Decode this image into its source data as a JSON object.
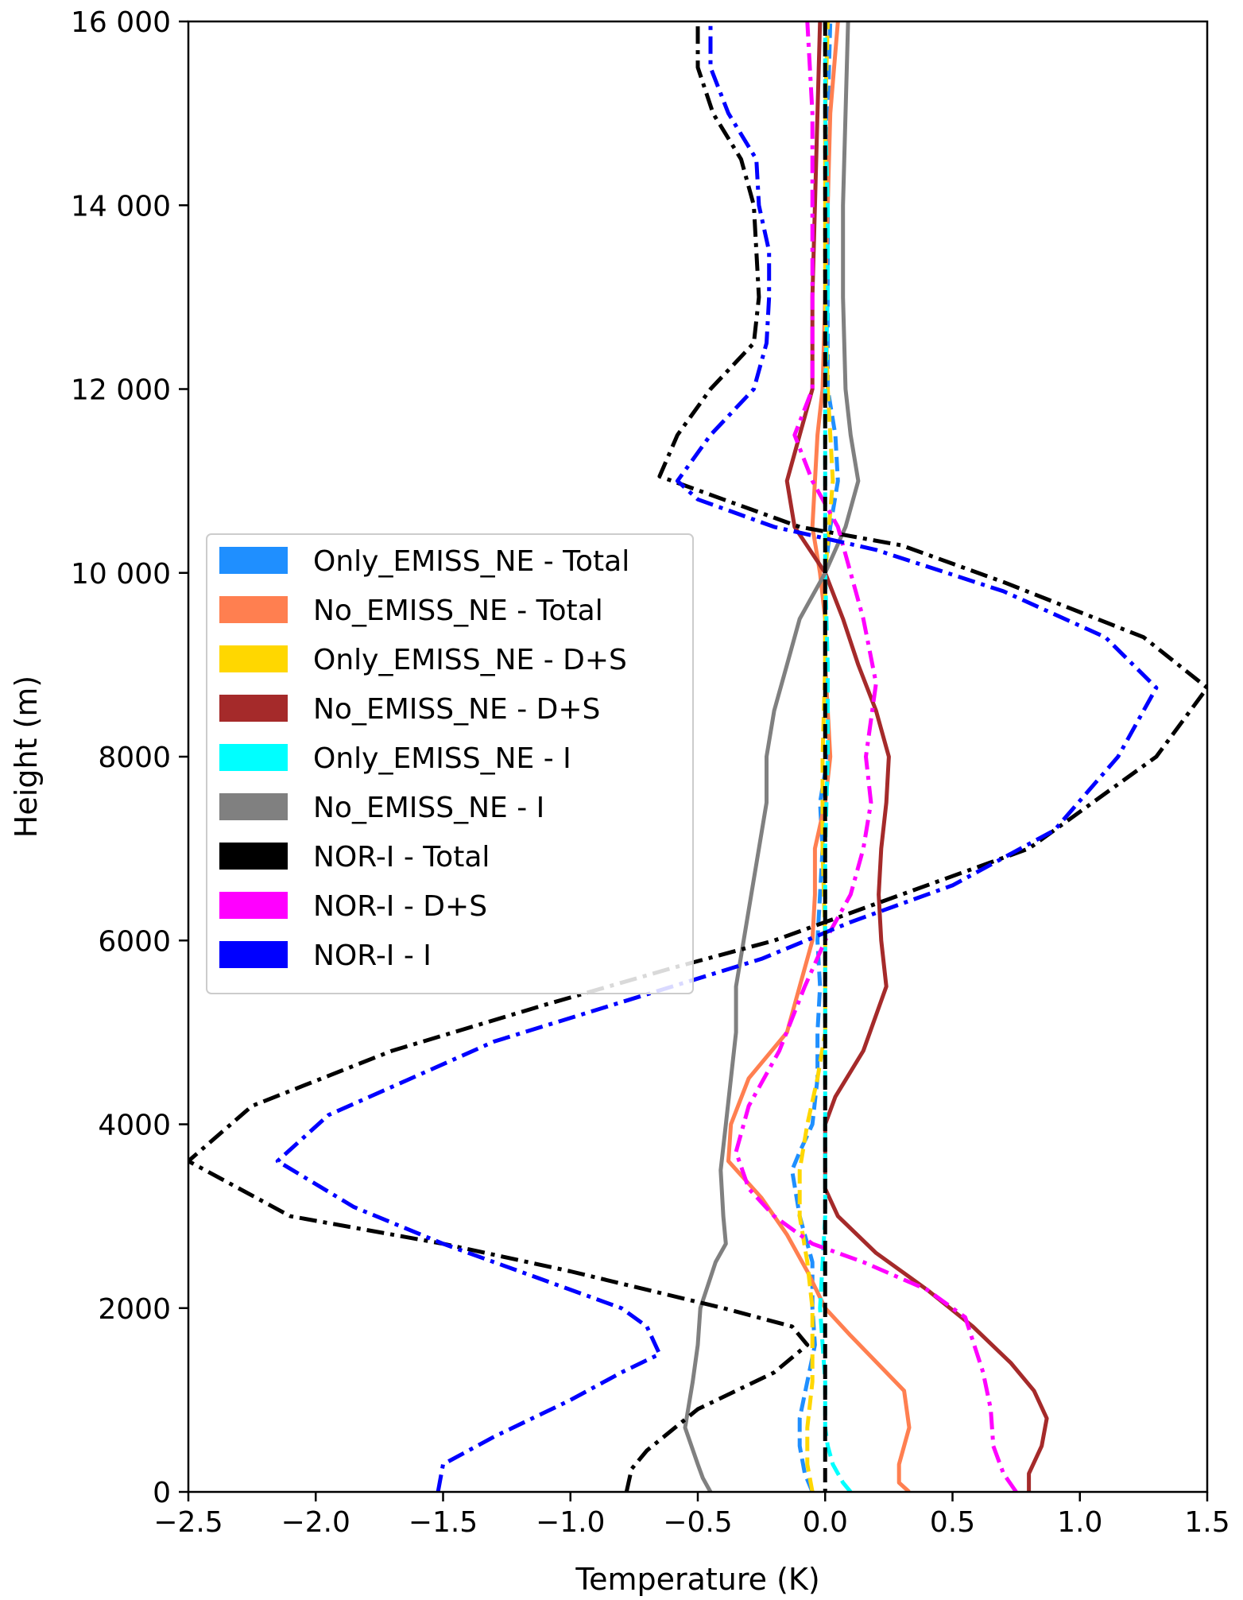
{
  "chart_data": {
    "type": "line",
    "title": "",
    "xlabel": "Temperature (K)",
    "ylabel": "Height (m)",
    "xlim": [
      -2.5,
      1.5
    ],
    "ylim": [
      0,
      16000
    ],
    "xticks": [
      -2.5,
      -2.0,
      -1.5,
      -1.0,
      -0.5,
      0.0,
      0.5,
      1.0,
      1.5
    ],
    "xtick_labels": [
      "−2.5",
      "−2.0",
      "−1.5",
      "−1.0",
      "−0.5",
      "0.0",
      "0.5",
      "1.0",
      "1.5"
    ],
    "yticks": [
      0,
      2000,
      4000,
      6000,
      8000,
      10000,
      12000,
      14000,
      16000
    ],
    "ytick_labels": [
      "0",
      "2000",
      "4000",
      "6000",
      "8000",
      "10 000",
      "12 000",
      "14 000",
      "16 000"
    ],
    "grid": false,
    "legend_position": "center-left",
    "series": [
      {
        "name": "Only_EMISS_NE - Total",
        "color": "#1f8fff",
        "style": "dashed",
        "points": [
          [
            -0.05,
            0
          ],
          [
            -0.08,
            200
          ],
          [
            -0.1,
            500
          ],
          [
            -0.1,
            800
          ],
          [
            -0.07,
            1200
          ],
          [
            -0.04,
            1600
          ],
          [
            -0.05,
            2000
          ],
          [
            -0.05,
            2500
          ],
          [
            -0.1,
            3000
          ],
          [
            -0.13,
            3500
          ],
          [
            -0.1,
            3700
          ],
          [
            -0.05,
            4000
          ],
          [
            -0.03,
            4500
          ],
          [
            -0.03,
            5000
          ],
          [
            -0.02,
            5500
          ],
          [
            -0.03,
            6000
          ],
          [
            -0.02,
            6500
          ],
          [
            -0.01,
            7000
          ],
          [
            -0.02,
            7500
          ],
          [
            0.01,
            8000
          ],
          [
            0.01,
            8500
          ],
          [
            0.0,
            9000
          ],
          [
            0.0,
            9500
          ],
          [
            0.0,
            10000
          ],
          [
            0.02,
            10500
          ],
          [
            0.05,
            11000
          ],
          [
            0.04,
            11500
          ],
          [
            0.01,
            12000
          ],
          [
            0.01,
            13000
          ],
          [
            0.01,
            14000
          ],
          [
            0.01,
            15000
          ],
          [
            0.02,
            16000
          ]
        ]
      },
      {
        "name": "No_EMISS_NE - Total",
        "color": "#ff7f50",
        "style": "solid",
        "points": [
          [
            0.33,
            0
          ],
          [
            0.29,
            100
          ],
          [
            0.29,
            300
          ],
          [
            0.33,
            700
          ],
          [
            0.31,
            1100
          ],
          [
            0.1,
            1700
          ],
          [
            0.0,
            2000
          ],
          [
            -0.07,
            2400
          ],
          [
            -0.15,
            2800
          ],
          [
            -0.25,
            3200
          ],
          [
            -0.38,
            3600
          ],
          [
            -0.37,
            4000
          ],
          [
            -0.3,
            4500
          ],
          [
            -0.15,
            5000
          ],
          [
            -0.1,
            5500
          ],
          [
            -0.05,
            6000
          ],
          [
            -0.04,
            6500
          ],
          [
            -0.04,
            7000
          ],
          [
            0.0,
            7500
          ],
          [
            0.02,
            8000
          ],
          [
            0.01,
            8500
          ],
          [
            0.0,
            9000
          ],
          [
            0.0,
            9500
          ],
          [
            -0.02,
            10000
          ],
          [
            -0.05,
            10500
          ],
          [
            -0.04,
            11000
          ],
          [
            -0.03,
            11500
          ],
          [
            -0.01,
            12000
          ],
          [
            0.0,
            13000
          ],
          [
            0.01,
            14000
          ],
          [
            0.02,
            15000
          ],
          [
            0.05,
            16000
          ]
        ]
      },
      {
        "name": "Only_EMISS_NE - D+S",
        "color": "#ffd700",
        "style": "dashed",
        "points": [
          [
            -0.05,
            0
          ],
          [
            -0.07,
            300
          ],
          [
            -0.07,
            700
          ],
          [
            -0.05,
            1200
          ],
          [
            -0.05,
            2000
          ],
          [
            -0.07,
            2500
          ],
          [
            -0.1,
            3000
          ],
          [
            -0.1,
            3500
          ],
          [
            -0.07,
            4000
          ],
          [
            -0.03,
            4500
          ],
          [
            0.0,
            5000
          ],
          [
            0.0,
            6000
          ],
          [
            -0.01,
            7000
          ],
          [
            -0.01,
            8000
          ],
          [
            0.0,
            9000
          ],
          [
            0.0,
            10000
          ],
          [
            0.03,
            11000
          ],
          [
            0.02,
            11500
          ],
          [
            0.01,
            12000
          ],
          [
            0.0,
            13000
          ],
          [
            0.0,
            14000
          ],
          [
            0.0,
            15000
          ],
          [
            0.01,
            16000
          ]
        ]
      },
      {
        "name": "No_EMISS_NE - D+S",
        "color": "#a52a2a",
        "style": "solid",
        "points": [
          [
            0.8,
            0
          ],
          [
            0.8,
            200
          ],
          [
            0.85,
            500
          ],
          [
            0.87,
            800
          ],
          [
            0.82,
            1100
          ],
          [
            0.73,
            1400
          ],
          [
            0.58,
            1800
          ],
          [
            0.4,
            2200
          ],
          [
            0.2,
            2600
          ],
          [
            0.05,
            3000
          ],
          [
            0.0,
            3300
          ],
          [
            0.0,
            3600
          ],
          [
            0.0,
            4000
          ],
          [
            0.04,
            4300
          ],
          [
            0.15,
            4800
          ],
          [
            0.24,
            5500
          ],
          [
            0.22,
            6000
          ],
          [
            0.21,
            6500
          ],
          [
            0.22,
            7000
          ],
          [
            0.24,
            7500
          ],
          [
            0.25,
            8000
          ],
          [
            0.2,
            8500
          ],
          [
            0.13,
            9000
          ],
          [
            0.07,
            9500
          ],
          [
            0.0,
            10000
          ],
          [
            -0.12,
            10500
          ],
          [
            -0.15,
            11000
          ],
          [
            -0.1,
            11500
          ],
          [
            -0.05,
            12000
          ],
          [
            -0.05,
            13000
          ],
          [
            -0.04,
            14000
          ],
          [
            -0.03,
            15000
          ],
          [
            -0.02,
            16000
          ]
        ]
      },
      {
        "name": "Only_EMISS_NE - I",
        "color": "#00ffff",
        "style": "dashed",
        "points": [
          [
            0.1,
            0
          ],
          [
            0.07,
            100
          ],
          [
            0.03,
            300
          ],
          [
            0.01,
            500
          ],
          [
            0.0,
            700
          ],
          [
            0.0,
            1200
          ],
          [
            -0.02,
            2000
          ],
          [
            0.0,
            3000
          ],
          [
            0.0,
            4000
          ],
          [
            0.0,
            5000
          ],
          [
            0.0,
            6000
          ],
          [
            0.0,
            7000
          ],
          [
            0.01,
            8000
          ],
          [
            0.01,
            9000
          ],
          [
            0.0,
            10000
          ],
          [
            0.0,
            11000
          ],
          [
            0.0,
            12000
          ],
          [
            0.01,
            13000
          ],
          [
            0.01,
            14000
          ],
          [
            0.0,
            15000
          ],
          [
            0.0,
            16000
          ]
        ]
      },
      {
        "name": "No_EMISS_NE - I",
        "color": "#808080",
        "style": "solid",
        "points": [
          [
            -0.45,
            0
          ],
          [
            -0.48,
            150
          ],
          [
            -0.5,
            300
          ],
          [
            -0.55,
            700
          ],
          [
            -0.52,
            1200
          ],
          [
            -0.5,
            1600
          ],
          [
            -0.49,
            2000
          ],
          [
            -0.43,
            2500
          ],
          [
            -0.39,
            2700
          ],
          [
            -0.4,
            3000
          ],
          [
            -0.41,
            3500
          ],
          [
            -0.39,
            4000
          ],
          [
            -0.37,
            4500
          ],
          [
            -0.35,
            5000
          ],
          [
            -0.35,
            5500
          ],
          [
            -0.32,
            6000
          ],
          [
            -0.29,
            6500
          ],
          [
            -0.26,
            7000
          ],
          [
            -0.23,
            7500
          ],
          [
            -0.23,
            8000
          ],
          [
            -0.2,
            8500
          ],
          [
            -0.15,
            9000
          ],
          [
            -0.1,
            9500
          ],
          [
            0.0,
            10000
          ],
          [
            0.08,
            10500
          ],
          [
            0.13,
            11000
          ],
          [
            0.1,
            11500
          ],
          [
            0.08,
            12000
          ],
          [
            0.07,
            13000
          ],
          [
            0.07,
            14000
          ],
          [
            0.08,
            15000
          ],
          [
            0.09,
            16000
          ]
        ]
      },
      {
        "name": "NOR-I - Total",
        "color": "#000000",
        "style": "dashdot",
        "points": [
          [
            -0.78,
            0
          ],
          [
            -0.76,
            250
          ],
          [
            -0.7,
            450
          ],
          [
            -0.5,
            900
          ],
          [
            -0.2,
            1300
          ],
          [
            -0.07,
            1600
          ],
          [
            -0.13,
            1800
          ],
          [
            -0.4,
            2000
          ],
          [
            -1.0,
            2400
          ],
          [
            -1.5,
            2700
          ],
          [
            -2.1,
            3000
          ],
          [
            -2.5,
            3600
          ],
          [
            -2.25,
            4200
          ],
          [
            -1.7,
            4800
          ],
          [
            -1.1,
            5300
          ],
          [
            -0.6,
            5700
          ],
          [
            -0.2,
            6000
          ],
          [
            0.2,
            6400
          ],
          [
            0.8,
            7000
          ],
          [
            1.3,
            8000
          ],
          [
            1.5,
            8750
          ],
          [
            1.25,
            9300
          ],
          [
            0.7,
            9900
          ],
          [
            0.3,
            10300
          ],
          [
            -0.1,
            10500
          ],
          [
            -0.4,
            10800
          ],
          [
            -0.65,
            11050
          ],
          [
            -0.58,
            11500
          ],
          [
            -0.45,
            12000
          ],
          [
            -0.28,
            12500
          ],
          [
            -0.26,
            13000
          ],
          [
            -0.27,
            13500
          ],
          [
            -0.28,
            14000
          ],
          [
            -0.33,
            14500
          ],
          [
            -0.44,
            15000
          ],
          [
            -0.5,
            15500
          ],
          [
            -0.5,
            16000
          ]
        ]
      },
      {
        "name": "NOR-I - D+S",
        "color": "#ff00ff",
        "style": "dashdot",
        "points": [
          [
            0.75,
            0
          ],
          [
            0.7,
            200
          ],
          [
            0.66,
            500
          ],
          [
            0.65,
            900
          ],
          [
            0.62,
            1300
          ],
          [
            0.55,
            1900
          ],
          [
            0.4,
            2200
          ],
          [
            0.15,
            2500
          ],
          [
            -0.05,
            2700
          ],
          [
            -0.2,
            3000
          ],
          [
            -0.3,
            3300
          ],
          [
            -0.35,
            3700
          ],
          [
            -0.3,
            4200
          ],
          [
            -0.18,
            4800
          ],
          [
            -0.08,
            5500
          ],
          [
            0.0,
            6000
          ],
          [
            0.1,
            6500
          ],
          [
            0.15,
            7000
          ],
          [
            0.18,
            7500
          ],
          [
            0.16,
            8000
          ],
          [
            0.2,
            8800
          ],
          [
            0.15,
            9500
          ],
          [
            0.1,
            10000
          ],
          [
            0.05,
            10500
          ],
          [
            -0.05,
            11000
          ],
          [
            -0.12,
            11500
          ],
          [
            -0.05,
            12000
          ],
          [
            -0.05,
            13000
          ],
          [
            -0.05,
            14000
          ],
          [
            -0.05,
            15000
          ],
          [
            -0.07,
            16000
          ]
        ]
      },
      {
        "name": "NOR-I - I",
        "color": "#0000ff",
        "style": "dashdot",
        "points": [
          [
            -1.52,
            0
          ],
          [
            -1.5,
            300
          ],
          [
            -1.3,
            600
          ],
          [
            -1.0,
            1000
          ],
          [
            -0.8,
            1300
          ],
          [
            -0.65,
            1500
          ],
          [
            -0.7,
            1800
          ],
          [
            -0.8,
            2000
          ],
          [
            -1.2,
            2400
          ],
          [
            -1.5,
            2700
          ],
          [
            -1.85,
            3100
          ],
          [
            -2.15,
            3600
          ],
          [
            -1.95,
            4100
          ],
          [
            -1.3,
            4900
          ],
          [
            -0.6,
            5500
          ],
          [
            -0.25,
            5800
          ],
          [
            0.1,
            6200
          ],
          [
            0.5,
            6600
          ],
          [
            0.9,
            7200
          ],
          [
            1.15,
            8000
          ],
          [
            1.3,
            8750
          ],
          [
            1.1,
            9300
          ],
          [
            0.7,
            9800
          ],
          [
            0.2,
            10250
          ],
          [
            -0.2,
            10500
          ],
          [
            -0.5,
            10800
          ],
          [
            -0.58,
            11000
          ],
          [
            -0.45,
            11500
          ],
          [
            -0.28,
            12000
          ],
          [
            -0.23,
            12500
          ],
          [
            -0.22,
            13000
          ],
          [
            -0.22,
            13500
          ],
          [
            -0.26,
            14000
          ],
          [
            -0.27,
            14500
          ],
          [
            -0.38,
            15000
          ],
          [
            -0.45,
            15500
          ],
          [
            -0.45,
            16000
          ]
        ]
      }
    ],
    "reference_line": {
      "x": 0.0,
      "color": "#000000",
      "style": "dashed"
    }
  }
}
